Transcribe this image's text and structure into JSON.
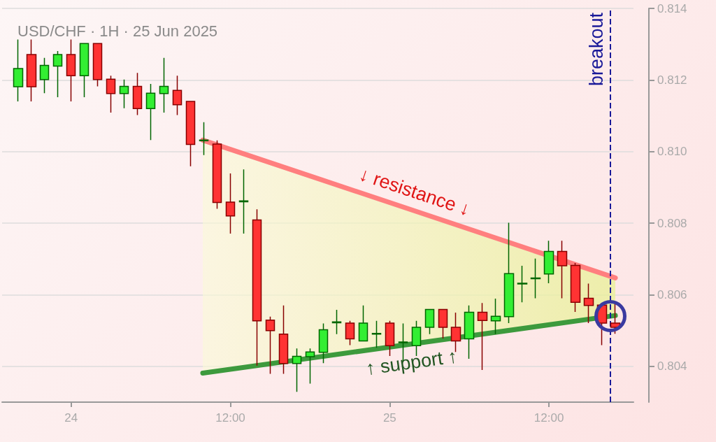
{
  "chart_data": {
    "type": "candlestick",
    "title": "USD/CHF · 1H · 25 Jun 2025",
    "x": [
      "2025-06-23T20:00",
      "2025-06-23T21:00",
      "2025-06-23T22:00",
      "2025-06-23T23:00",
      "2025-06-24T00:00",
      "2025-06-24T01:00",
      "2025-06-24T02:00",
      "2025-06-24T03:00",
      "2025-06-24T04:00",
      "2025-06-24T05:00",
      "2025-06-24T06:00",
      "2025-06-24T07:00",
      "2025-06-24T08:00",
      "2025-06-24T09:00",
      "2025-06-24T10:00",
      "2025-06-24T11:00",
      "2025-06-24T12:00",
      "2025-06-24T13:00",
      "2025-06-24T14:00",
      "2025-06-24T15:00",
      "2025-06-24T16:00",
      "2025-06-24T17:00",
      "2025-06-24T18:00",
      "2025-06-24T19:00",
      "2025-06-24T20:00",
      "2025-06-24T21:00",
      "2025-06-24T22:00",
      "2025-06-24T23:00",
      "2025-06-25T00:00",
      "2025-06-25T01:00",
      "2025-06-25T02:00",
      "2025-06-25T03:00",
      "2025-06-25T04:00",
      "2025-06-25T05:00",
      "2025-06-25T06:00",
      "2025-06-25T07:00",
      "2025-06-25T08:00",
      "2025-06-25T09:00",
      "2025-06-25T10:00",
      "2025-06-25T11:00",
      "2025-06-25T12:00",
      "2025-06-25T13:00",
      "2025-06-25T14:00",
      "2025-06-25T15:00",
      "2025-06-25T16:00",
      "2025-06-25T17:00"
    ],
    "ohlc": [
      [
        0.81181,
        0.81313,
        0.8114,
        0.81232
      ],
      [
        0.81271,
        0.81313,
        0.8114,
        0.81181
      ],
      [
        0.81201,
        0.81262,
        0.81163,
        0.81241
      ],
      [
        0.81239,
        0.81281,
        0.81152,
        0.81271
      ],
      [
        0.81271,
        0.81313,
        0.8114,
        0.81212
      ],
      [
        0.81212,
        0.81302,
        0.81152,
        0.81302
      ],
      [
        0.81302,
        0.81302,
        0.81182,
        0.81201
      ],
      [
        0.81202,
        0.81212,
        0.81109,
        0.81162
      ],
      [
        0.81162,
        0.81201,
        0.81121,
        0.81182
      ],
      [
        0.81182,
        0.8122,
        0.81102,
        0.8112
      ],
      [
        0.8112,
        0.81189,
        0.81032,
        0.81163
      ],
      [
        0.81162,
        0.81262,
        0.81109,
        0.81182
      ],
      [
        0.81171,
        0.81212,
        0.81102,
        0.81131
      ],
      [
        0.8114,
        0.8114,
        0.80959,
        0.8102
      ],
      [
        0.8103,
        0.81082,
        0.8099,
        0.81032
      ],
      [
        0.81021,
        0.81031,
        0.8084,
        0.80858
      ],
      [
        0.80859,
        0.80939,
        0.80771,
        0.8082
      ],
      [
        0.8086,
        0.8095,
        0.80771,
        0.80862
      ],
      [
        0.80809,
        0.80839,
        0.80402,
        0.80527
      ],
      [
        0.80529,
        0.80539,
        0.80379,
        0.805
      ],
      [
        0.8049,
        0.8057,
        0.80379,
        0.80408
      ],
      [
        0.80408,
        0.8045,
        0.80329,
        0.80428
      ],
      [
        0.80427,
        0.8045,
        0.80352,
        0.8044
      ],
      [
        0.80439,
        0.8052,
        0.80409,
        0.80502
      ],
      [
        0.80522,
        0.80558,
        0.8049,
        0.80524
      ],
      [
        0.80521,
        0.80527,
        0.80459,
        0.80477
      ],
      [
        0.80471,
        0.8057,
        0.80471,
        0.80521
      ],
      [
        0.8049,
        0.80527,
        0.80452,
        0.80492
      ],
      [
        0.80521,
        0.80527,
        0.80429,
        0.80458
      ],
      [
        0.80466,
        0.8052,
        0.80413,
        0.80468
      ],
      [
        0.80458,
        0.80527,
        0.80429,
        0.80509
      ],
      [
        0.80509,
        0.80559,
        0.8049,
        0.80559
      ],
      [
        0.80559,
        0.80559,
        0.80478,
        0.80509
      ],
      [
        0.80509,
        0.8055,
        0.8044,
        0.80471
      ],
      [
        0.80477,
        0.8057,
        0.80421,
        0.80551
      ],
      [
        0.80551,
        0.80577,
        0.8039,
        0.80528
      ],
      [
        0.80527,
        0.80589,
        0.8049,
        0.8054
      ],
      [
        0.80539,
        0.80801,
        0.80521,
        0.80659
      ],
      [
        0.8063,
        0.80681,
        0.80579,
        0.80632
      ],
      [
        0.80645,
        0.80701,
        0.8059,
        0.80647
      ],
      [
        0.80658,
        0.80751,
        0.80632,
        0.80721
      ],
      [
        0.80721,
        0.80751,
        0.8059,
        0.80681
      ],
      [
        0.80682,
        0.80689,
        0.80552,
        0.80579
      ],
      [
        0.8059,
        0.80631,
        0.80521,
        0.8057
      ],
      [
        0.80571,
        0.80571,
        0.80459,
        0.80521
      ],
      [
        0.80521,
        0.80576,
        0.80491,
        0.80509
      ]
    ],
    "series": [
      {
        "type": "line",
        "x": [
          "2025-06-24T09:55",
          "2025-06-25T17:00"
        ],
        "values": [
          0.81032,
          0.80647
        ],
        "color": "#ff7f7f",
        "lower": [
          0.80381,
          0.80542
        ],
        "upper": [
          0.81032,
          0.80647
        ]
      },
      {
        "type": "line",
        "x": [
          "2025-06-24T09:55",
          "2025-06-25T17:00"
        ],
        "values": [
          0.80381,
          0.80542
        ],
        "color": "#3d9a3d"
      }
    ],
    "xlim": [
      "2025-06-23T18:48",
      "2025-06-25T18:22"
    ],
    "xticks": [
      {
        "value": "2025-06-24T00:00",
        "label": "24"
      },
      {
        "value": "2025-06-24T12:00",
        "label": "12:00"
      },
      {
        "value": "2025-06-25T00:00",
        "label": "25"
      },
      {
        "value": "2025-06-25T12:00",
        "label": "12:00"
      }
    ],
    "ylim": [
      0.803,
      0.814
    ],
    "yticks": [
      0.804,
      0.806,
      0.808,
      {
        "value": 0.81,
        "label": "0.810"
      },
      0.812,
      0.814
    ],
    "grid": "y",
    "marker": "none",
    "ref_lines": [
      {
        "axis": "x",
        "value": "2025-06-25T16:37",
        "label": "breakout",
        "color": "#1a1a99",
        "line_style": "dashed"
      }
    ],
    "annotations": [
      "↓ resistance ↓",
      "↑ support ↑"
    ]
  }
}
